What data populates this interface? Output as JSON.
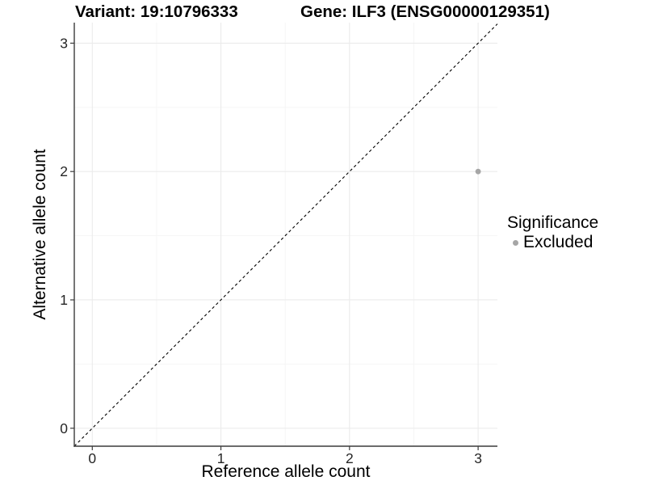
{
  "chart_data": {
    "type": "scatter",
    "title_left": "Variant: 19:10796333",
    "title_right": "Gene: ILF3 (ENSG00000129351)",
    "xlabel": "Reference allele count",
    "ylabel": "Alternative allele count",
    "xlim": [
      -0.14,
      3.15
    ],
    "ylim": [
      -0.14,
      3.16
    ],
    "x_ticks": [
      0,
      1,
      2,
      3
    ],
    "y_ticks": [
      0,
      1,
      2,
      3
    ],
    "x_minor_ticks": [
      0.5,
      1.5,
      2.5
    ],
    "y_minor_ticks": [
      0.5,
      1.5,
      2.5
    ],
    "grid": true,
    "legend_position": "right",
    "legend_title": "Significance",
    "reference_line": {
      "type": "identity",
      "style": "dashed",
      "color": "#000000"
    },
    "series": [
      {
        "name": "Excluded",
        "color": "#a6a6a6",
        "points": [
          {
            "x": 3,
            "y": 2
          }
        ]
      }
    ],
    "colors": {
      "major_grid": "#ebebeb",
      "minor_grid": "#f5f5f5",
      "axis_line": "#3c3c3c",
      "tick_text": "#262626",
      "background": "#ffffff"
    }
  }
}
